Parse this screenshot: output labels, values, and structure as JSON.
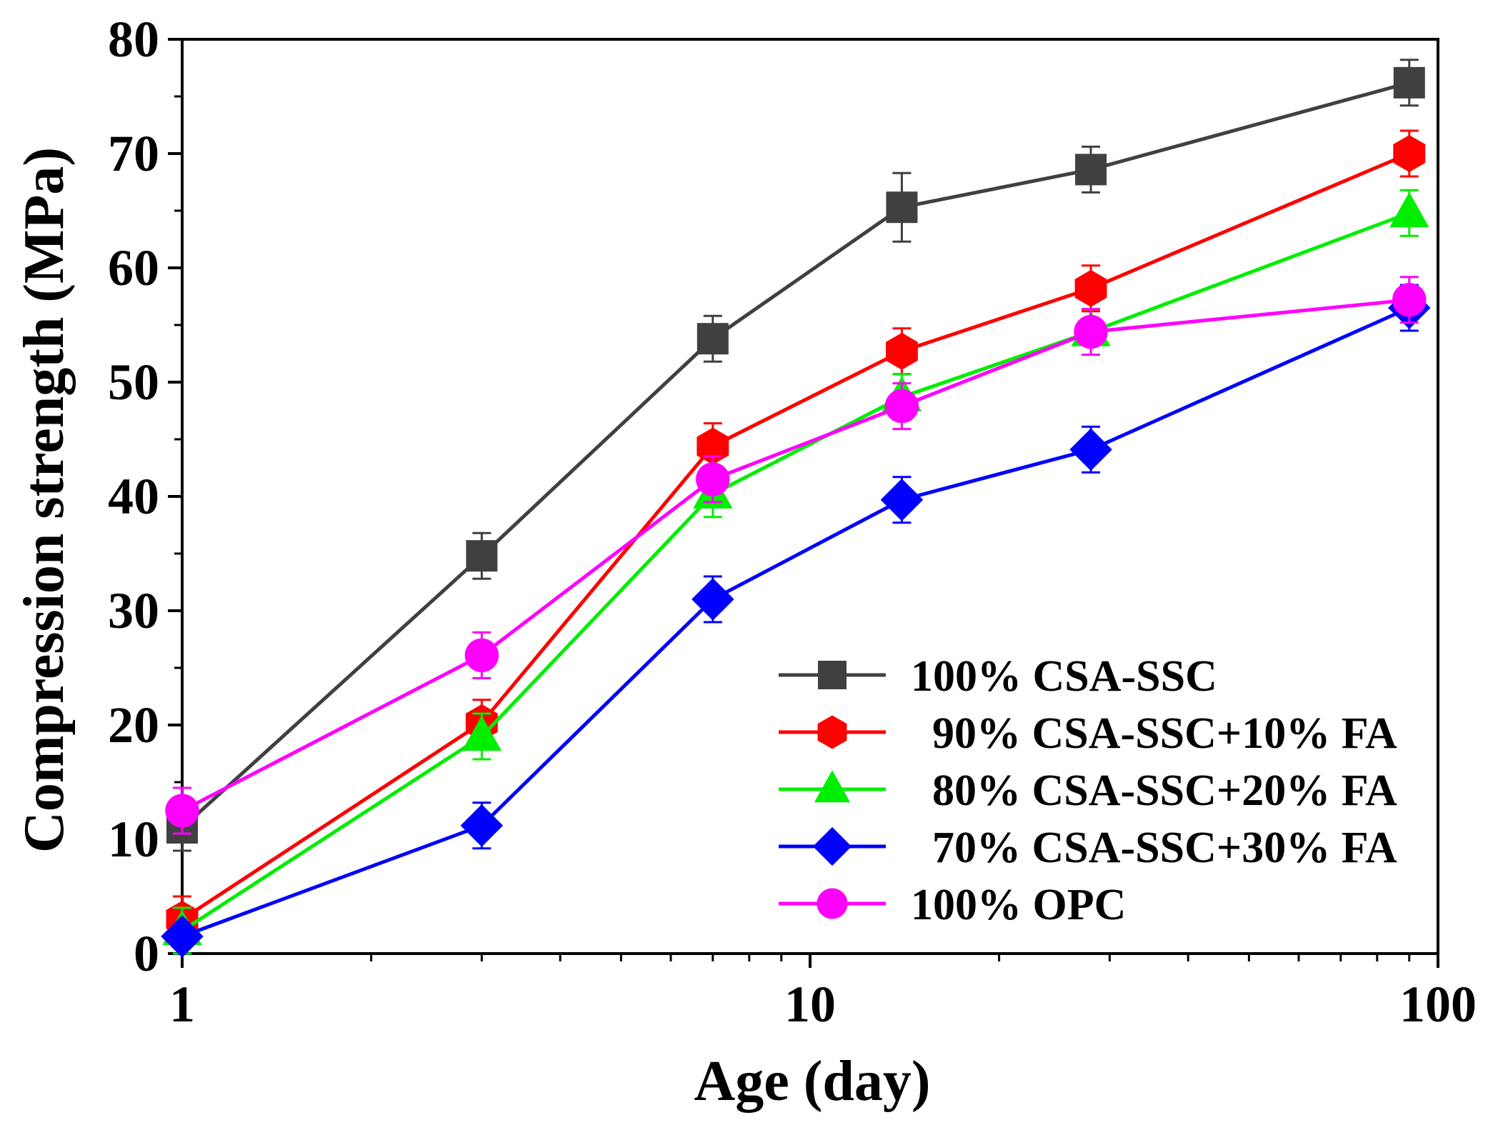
{
  "chart_data": {
    "type": "line",
    "xscale": "log",
    "xlabel": "Age (day)",
    "ylabel": "Compression strength (MPa)",
    "xlim": [
      1,
      100
    ],
    "ylim": [
      0,
      80
    ],
    "xticks": [
      1,
      10,
      100
    ],
    "xtick_labels": [
      "1",
      "10",
      "100"
    ],
    "yticks": [
      0,
      10,
      20,
      30,
      40,
      50,
      60,
      70,
      80
    ],
    "ytick_labels": [
      "0",
      "10",
      "20",
      "30",
      "40",
      "50",
      "60",
      "70",
      "80"
    ],
    "x": [
      1,
      3,
      7,
      14,
      28,
      90
    ],
    "legend_position": "bottom-right",
    "series": [
      {
        "name": "100% CSA-SSC",
        "color": "#404040",
        "marker": "square",
        "values": [
          11.0,
          34.8,
          53.8,
          65.3,
          68.6,
          76.2
        ],
        "errors": [
          2.0,
          2.0,
          2.0,
          3.0,
          2.0,
          2.0
        ]
      },
      {
        "name": "90% CSA-SSC+10% FA",
        "color": "#ff0000",
        "marker": "hexagon",
        "values": [
          3.0,
          20.2,
          44.4,
          52.7,
          58.2,
          70.0
        ],
        "errors": [
          2.0,
          2.0,
          2.0,
          2.0,
          2.0,
          2.0
        ]
      },
      {
        "name": "80% CSA-SSC+20% FA",
        "color": "#00ee00",
        "marker": "triangle",
        "values": [
          2.0,
          19.0,
          40.2,
          48.7,
          54.4,
          64.8
        ],
        "errors": [
          2.0,
          2.0,
          2.0,
          2.0,
          2.0,
          2.0
        ]
      },
      {
        "name": "70% CSA-SSC+30% FA",
        "color": "#0000ff",
        "marker": "diamond",
        "values": [
          1.5,
          11.2,
          31.0,
          39.7,
          44.1,
          56.5
        ],
        "errors": [
          0.5,
          2.0,
          2.0,
          2.0,
          2.0,
          2.0
        ]
      },
      {
        "name": "100% OPC",
        "color": "#ff00ff",
        "marker": "circle",
        "values": [
          12.5,
          26.1,
          41.5,
          47.9,
          54.4,
          57.2
        ],
        "errors": [
          2.0,
          2.0,
          2.0,
          2.0,
          2.0,
          2.0
        ]
      }
    ]
  }
}
